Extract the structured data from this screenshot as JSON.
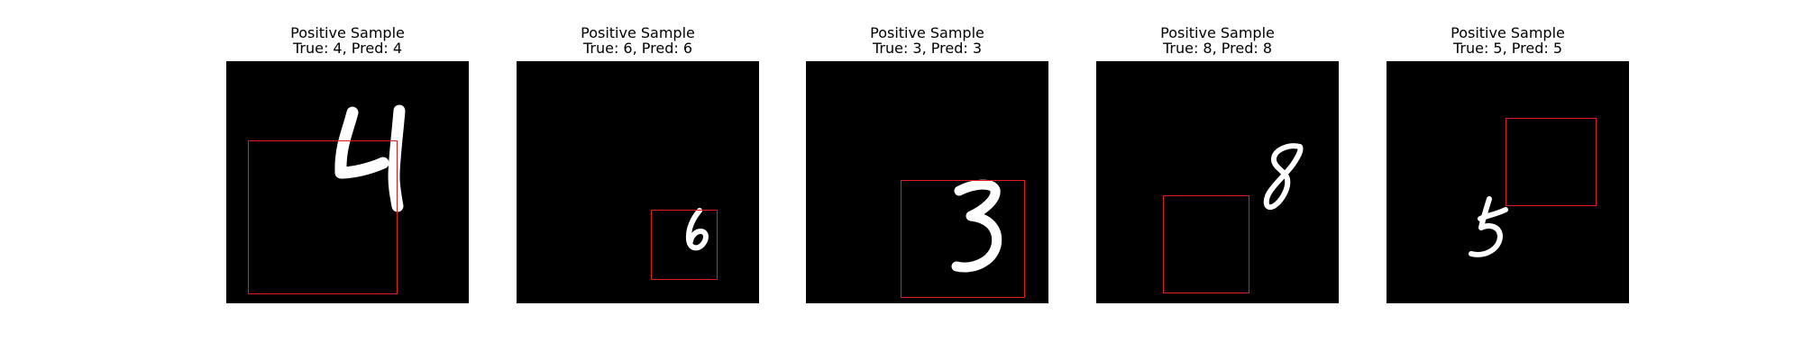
{
  "figure": {
    "background": "#ffffff",
    "box_color": "#e31a1c",
    "panels": [
      {
        "title": "Positive Sample",
        "subtitle": "True: 4, Pred: 4",
        "digit": "4"
      },
      {
        "title": "Positive Sample",
        "subtitle": "True: 6, Pred: 6",
        "digit": "6"
      },
      {
        "title": "Positive Sample",
        "subtitle": "True: 3, Pred: 3",
        "digit": "3"
      },
      {
        "title": "Positive Sample",
        "subtitle": "True: 8, Pred: 8",
        "digit": "8"
      },
      {
        "title": "Positive Sample",
        "subtitle": "True: 5, Pred: 5",
        "digit": "5"
      }
    ]
  }
}
